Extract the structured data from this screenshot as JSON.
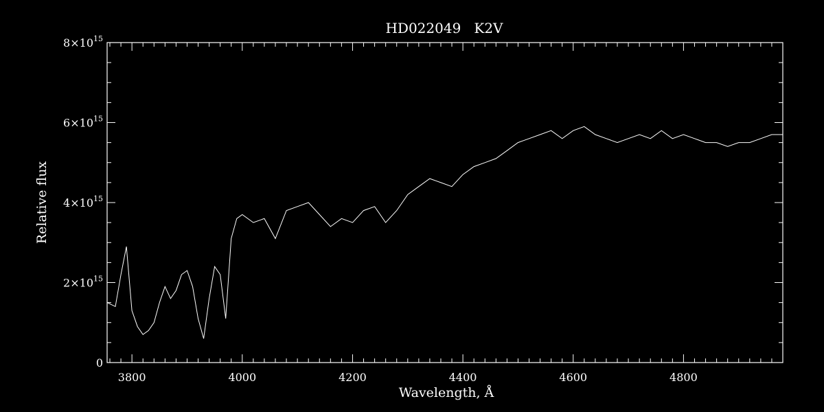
{
  "chart_data": {
    "type": "line",
    "title": "HD022049   K2V",
    "xlabel": "Wavelength, Å",
    "ylabel": "Relative flux",
    "xlim": [
      3755,
      4980
    ],
    "ylim": [
      0,
      8000000000000000.0
    ],
    "x_ticks": [
      3800,
      4000,
      4200,
      4400,
      4600,
      4800
    ],
    "x_tick_labels": [
      "3800",
      "4000",
      "4200",
      "4400",
      "4600",
      "4800"
    ],
    "y_ticks": [
      0,
      2000000000000000.0,
      4000000000000000.0,
      6000000000000000.0,
      8000000000000000.0
    ],
    "y_tick_labels": [
      {
        "mantissa": "0",
        "exponent": ""
      },
      {
        "mantissa": "2×10",
        "exponent": "15"
      },
      {
        "mantissa": "4×10",
        "exponent": "15"
      },
      {
        "mantissa": "6×10",
        "exponent": "15"
      },
      {
        "mantissa": "8×10",
        "exponent": "15"
      }
    ],
    "grid": false,
    "line_color": "#ffffff",
    "background_color": "#000000",
    "series": [
      {
        "x": [
          3755,
          3770,
          3780,
          3790,
          3800,
          3810,
          3820,
          3830,
          3840,
          3850,
          3860,
          3870,
          3880,
          3890,
          3900,
          3910,
          3920,
          3930,
          3940,
          3950,
          3960,
          3970,
          3980,
          3990,
          4000,
          4020,
          4040,
          4060,
          4080,
          4100,
          4120,
          4140,
          4160,
          4180,
          4200,
          4220,
          4240,
          4260,
          4280,
          4300,
          4320,
          4340,
          4360,
          4380,
          4400,
          4420,
          4440,
          4460,
          4480,
          4500,
          4520,
          4540,
          4560,
          4580,
          4600,
          4620,
          4640,
          4660,
          4680,
          4700,
          4720,
          4740,
          4760,
          4780,
          4800,
          4820,
          4840,
          4860,
          4880,
          4900,
          4920,
          4940,
          4960,
          4980
        ],
        "y": [
          1500000000000000.0,
          1400000000000000.0,
          2200000000000000.0,
          2900000000000000.0,
          1300000000000000.0,
          900000000000000.0,
          700000000000000.0,
          800000000000000.0,
          1000000000000000.0,
          1500000000000000.0,
          1900000000000000.0,
          1600000000000000.0,
          1800000000000000.0,
          2200000000000000.0,
          2300000000000000.0,
          1900000000000000.0,
          1100000000000000.0,
          600000000000000.0,
          1600000000000000.0,
          2400000000000000.0,
          2200000000000000.0,
          1100000000000000.0,
          3100000000000000.0,
          3600000000000000.0,
          3700000000000000.0,
          3500000000000000.0,
          3600000000000000.0,
          3100000000000000.0,
          3800000000000000.0,
          3900000000000000.0,
          4000000000000000.0,
          3700000000000000.0,
          3400000000000000.0,
          3600000000000000.0,
          3500000000000000.0,
          3800000000000000.0,
          3900000000000000.0,
          3500000000000000.0,
          3800000000000000.0,
          4200000000000000.0,
          4400000000000000.0,
          4600000000000000.0,
          4500000000000000.0,
          4400000000000000.0,
          4700000000000000.0,
          4900000000000000.0,
          5000000000000000.0,
          5100000000000000.0,
          5300000000000000.0,
          5500000000000000.0,
          5600000000000000.0,
          5700000000000000.0,
          5800000000000000.0,
          5600000000000000.0,
          5800000000000000.0,
          5900000000000000.0,
          5700000000000000.0,
          5600000000000000.0,
          5500000000000000.0,
          5600000000000000.0,
          5700000000000000.0,
          5600000000000000.0,
          5800000000000000.0,
          5600000000000000.0,
          5700000000000000.0,
          5600000000000000.0,
          5500000000000000.0,
          5500000000000000.0,
          5400000000000000.0,
          5500000000000000.0,
          5500000000000000.0,
          5600000000000000.0,
          5700000000000000.0,
          5700000000000000.0
        ]
      }
    ]
  }
}
